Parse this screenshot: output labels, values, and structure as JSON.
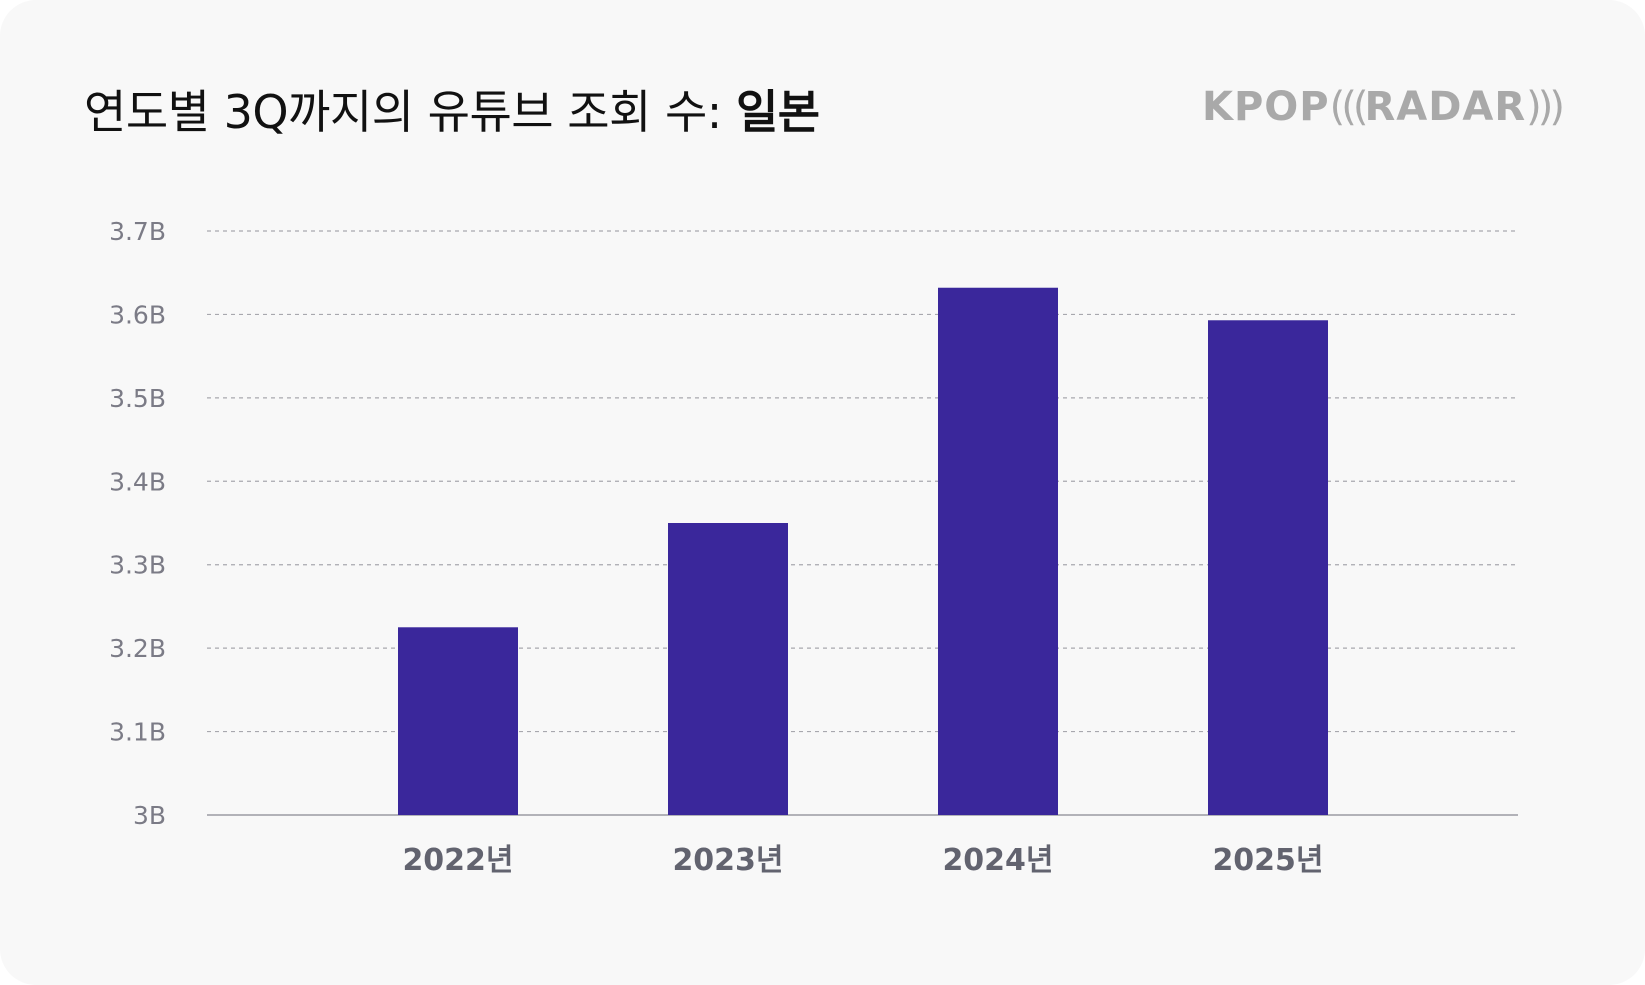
{
  "title": {
    "prefix": "연도별 3Q까지의 유튜브 조회 수: ",
    "highlight": "일본"
  },
  "logo": {
    "kpop": "KPOP",
    "left_paren": "(((",
    "radar": "RADAR",
    "right_paren": ")))"
  },
  "colors": {
    "bar": "#3a279b",
    "grid": "#a8a8ae",
    "axis": "#9a9aa2",
    "background": "#f8f8f8"
  },
  "chart_data": {
    "type": "bar",
    "title": "연도별 3Q까지의 유튜브 조회 수: 일본",
    "xlabel": "",
    "ylabel": "",
    "categories": [
      "2022년",
      "2023년",
      "2024년",
      "2025년"
    ],
    "values": [
      3.225,
      3.35,
      3.632,
      3.593
    ],
    "unit": "B",
    "ylim": [
      3.0,
      3.7
    ],
    "yticks": [
      3.0,
      3.1,
      3.2,
      3.3,
      3.4,
      3.5,
      3.6,
      3.7
    ],
    "ytick_labels": [
      "3B",
      "3.1B",
      "3.2B",
      "3.3B",
      "3.4B",
      "3.5B",
      "3.6B",
      "3.7B"
    ],
    "grid": true,
    "legend": "none"
  }
}
